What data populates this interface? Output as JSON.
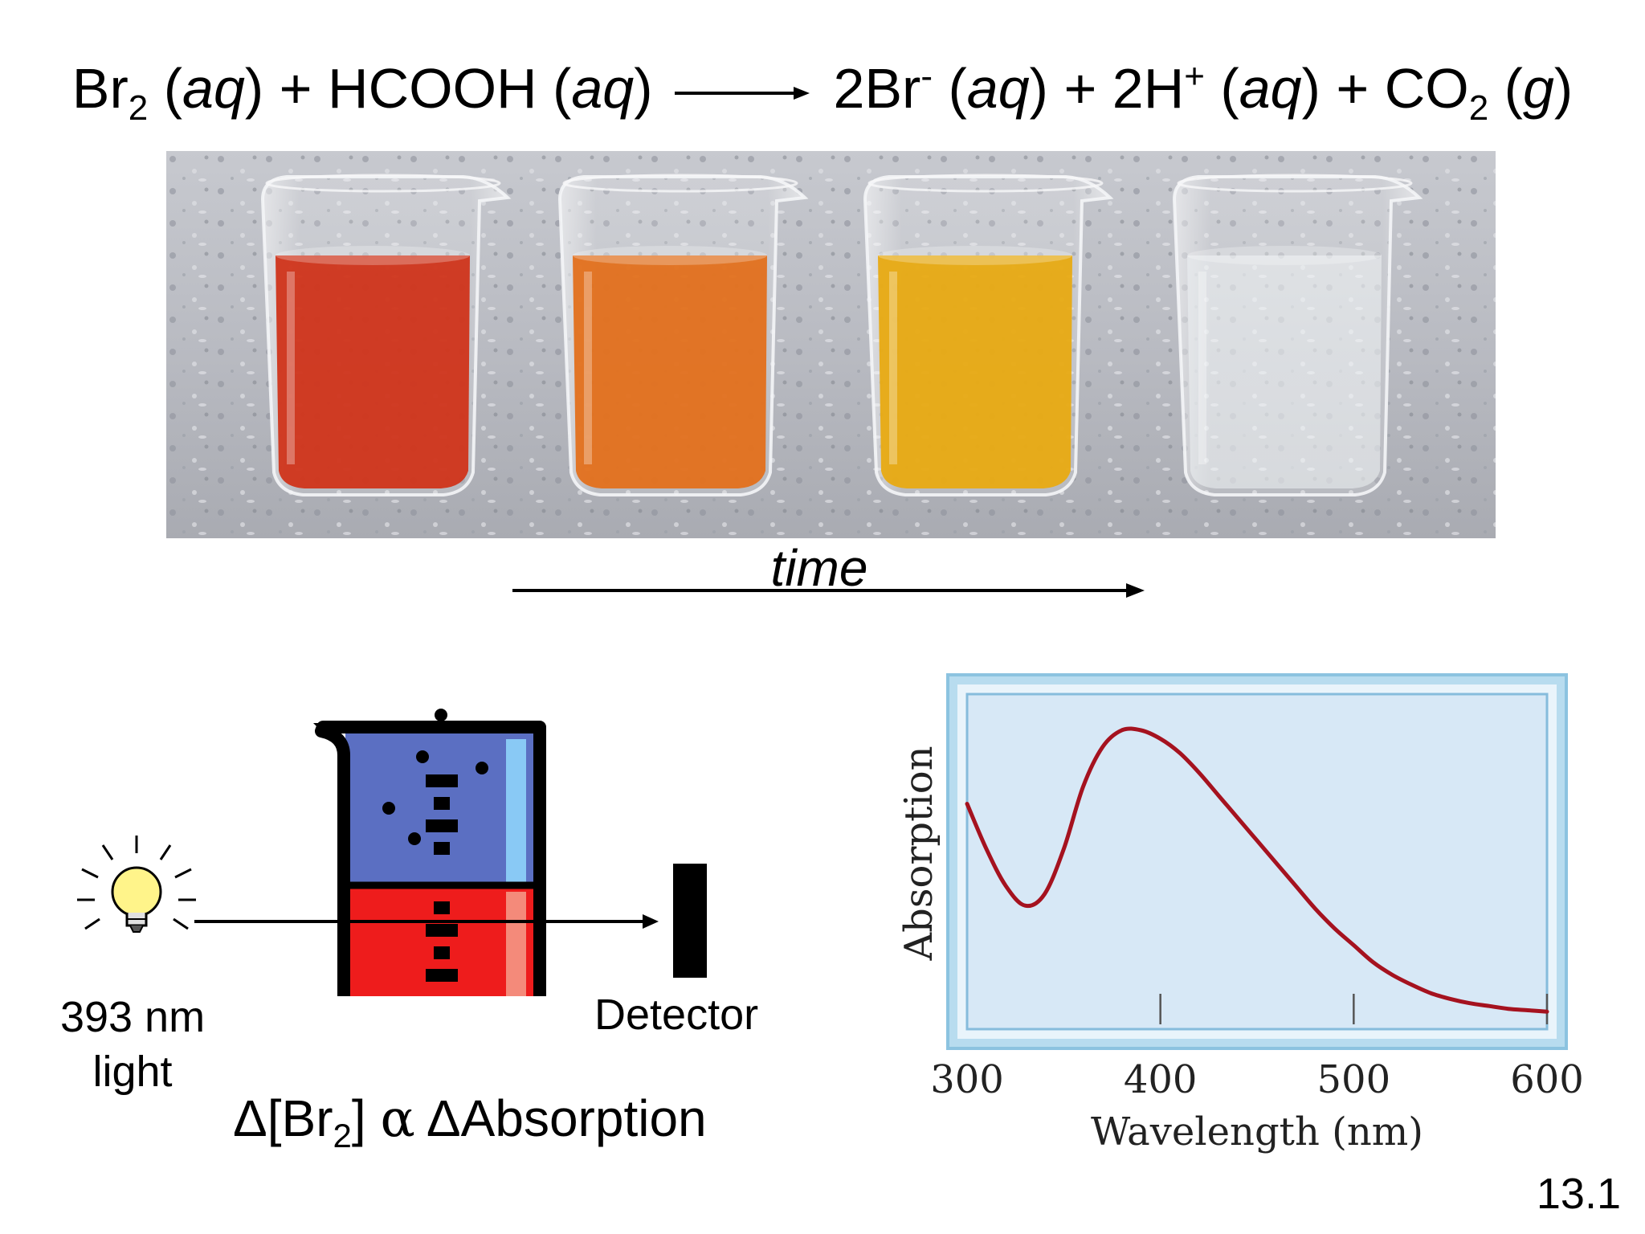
{
  "equation": {
    "r1": "Br",
    "r1_sub": "2",
    "r1_state": "aq",
    "plus1": "+",
    "r2": "HCOOH",
    "r2_state": "aq",
    "p1": "2Br",
    "p1_sup": "-",
    "p1_state": "aq",
    "plus2": "+",
    "p2": "2H",
    "p2_sup": "+",
    "p2_state": "aq",
    "plus3": "+",
    "p3": "CO",
    "p3_sub": "2",
    "p3_state": "g"
  },
  "beakers": {
    "colors": [
      "#d0341a",
      "#e3701c",
      "#e8aa12",
      "#eef2f4"
    ]
  },
  "time_label": "time",
  "apparatus": {
    "light_line1": "393 nm",
    "light_line2": "light",
    "detector": "Detector",
    "relation_delta1": "Δ[Br",
    "relation_sub": "2",
    "relation_close": "]",
    "relation_alpha": "α",
    "relation_rest": "ΔAbsorption",
    "top_color": "#5b6fc2",
    "bottom_color": "#ee1c1c"
  },
  "chart_data": {
    "type": "line",
    "xlabel": "Wavelength (nm)",
    "ylabel": "Absorption",
    "xlim": [
      300,
      600
    ],
    "ylim": [
      0,
      1
    ],
    "xticks": [
      "300",
      "400",
      "500",
      "600"
    ],
    "x": [
      300,
      310,
      320,
      330,
      340,
      350,
      360,
      370,
      380,
      390,
      400,
      410,
      420,
      430,
      440,
      450,
      460,
      470,
      480,
      490,
      500,
      510,
      520,
      530,
      540,
      550,
      560,
      570,
      580,
      590,
      600
    ],
    "y": [
      0.74,
      0.58,
      0.45,
      0.38,
      0.42,
      0.58,
      0.8,
      0.94,
      1.0,
      1.0,
      0.97,
      0.92,
      0.85,
      0.77,
      0.69,
      0.61,
      0.53,
      0.45,
      0.37,
      0.3,
      0.24,
      0.18,
      0.135,
      0.1,
      0.07,
      0.05,
      0.035,
      0.025,
      0.015,
      0.01,
      0.005
    ],
    "line_color": "#a5121f"
  },
  "slide_number": "13.1"
}
